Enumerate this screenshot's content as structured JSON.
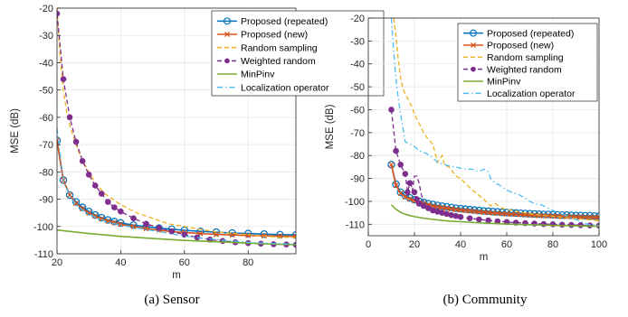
{
  "colors": {
    "proposed_repeated": "#0072BD",
    "proposed_new": "#D95319",
    "random_sampling": "#EDB120",
    "weighted_random": "#7E2F8E",
    "minpinv": "#77AC30",
    "localization_operator": "#4DBEEE"
  },
  "chart_data": [
    {
      "type": "line",
      "caption": "(a)  Sensor",
      "xlabel": "m",
      "ylabel": "MSE (dB)",
      "xlim": [
        20,
        95
      ],
      "ylim": [
        -110,
        -20
      ],
      "xticks": [
        20,
        40,
        60,
        80
      ],
      "yticks": [
        -110,
        -100,
        -90,
        -80,
        -70,
        -60,
        -50,
        -40,
        -30,
        -20
      ],
      "grid": true,
      "legend_position": "top-right",
      "series": [
        {
          "name": "Proposed (repeated)",
          "color_key": "proposed_repeated",
          "style": "solid",
          "marker": "circle",
          "x": [
            20,
            22,
            24,
            26,
            28,
            30,
            32,
            34,
            36,
            38,
            40,
            44,
            48,
            52,
            56,
            60,
            65,
            70,
            75,
            80,
            85,
            90,
            95
          ],
          "y": [
            -68.5,
            -83,
            -88.5,
            -91,
            -93,
            -94.5,
            -95.8,
            -96.8,
            -97.6,
            -98.2,
            -98.7,
            -99.5,
            -100.1,
            -100.6,
            -101,
            -101.4,
            -101.8,
            -102.1,
            -102.4,
            -102.6,
            -102.8,
            -103,
            -103.1
          ]
        },
        {
          "name": "Proposed (new)",
          "color_key": "proposed_new",
          "style": "solid",
          "marker": "x",
          "x": [
            20,
            22,
            24,
            26,
            28,
            30,
            32,
            34,
            36,
            38,
            40,
            44,
            48,
            52,
            56,
            60,
            65,
            70,
            75,
            80,
            85,
            90,
            95
          ],
          "y": [
            -68.5,
            -83,
            -88.5,
            -91.5,
            -93.5,
            -95,
            -96.2,
            -97.2,
            -98,
            -98.6,
            -99.2,
            -100,
            -100.8,
            -101.4,
            -101.9,
            -102.2,
            -102.6,
            -102.9,
            -103.1,
            -103.3,
            -103.4,
            -103.5,
            -103.6
          ]
        },
        {
          "name": "Random sampling",
          "color_key": "random_sampling",
          "style": "dashed",
          "marker": "none",
          "x": [
            20,
            21,
            22,
            23,
            24,
            26,
            28,
            30,
            32,
            35,
            40,
            45,
            50,
            55,
            60,
            65,
            70,
            75,
            80,
            85,
            90,
            95
          ],
          "y": [
            -20,
            -38,
            -50,
            -58,
            -63,
            -70,
            -76,
            -80,
            -84,
            -88,
            -92,
            -95,
            -97,
            -99,
            -100,
            -101,
            -102,
            -102.5,
            -103,
            -103.5,
            -104,
            -104
          ]
        },
        {
          "name": "Weighted random",
          "color_key": "weighted_random",
          "style": "dashed",
          "marker": "dot",
          "x": [
            20,
            22,
            24,
            26,
            28,
            30,
            32,
            34,
            36,
            38,
            40,
            44,
            48,
            52,
            56,
            60,
            64,
            68,
            72,
            76,
            80,
            84,
            88,
            92,
            95
          ],
          "y": [
            -22,
            -46,
            -60,
            -69,
            -76,
            -81,
            -85,
            -88,
            -91,
            -93,
            -94.5,
            -97,
            -99,
            -100.5,
            -101.8,
            -103,
            -104,
            -104.8,
            -105.3,
            -105.8,
            -106.1,
            -106.3,
            -106.5,
            -106.6,
            -106.7
          ]
        },
        {
          "name": "MinPinv",
          "color_key": "minpinv",
          "style": "solid",
          "marker": "none",
          "x": [
            20,
            30,
            40,
            50,
            60,
            70,
            80,
            90,
            95
          ],
          "y": [
            -101.3,
            -102.6,
            -103.6,
            -104.4,
            -105.1,
            -105.6,
            -106.1,
            -106.5,
            -106.7
          ]
        },
        {
          "name": "Localization operator",
          "color_key": "localization_operator",
          "style": "dashdot",
          "marker": "none",
          "x": [
            20,
            22,
            24,
            26,
            28,
            30,
            35,
            40,
            45,
            50,
            55,
            60,
            65,
            70,
            75,
            80,
            85,
            90,
            95
          ],
          "y": [
            -64,
            -83,
            -89,
            -92,
            -94,
            -95.5,
            -98,
            -99.5,
            -100.5,
            -101.5,
            -102.5,
            -103.5,
            -104.2,
            -104.8,
            -105.3,
            -105.8,
            -106.1,
            -106.3,
            -106.5
          ]
        }
      ]
    },
    {
      "type": "line",
      "caption": "(b)  Community",
      "xlabel": "m",
      "ylabel": "MSE (dB)",
      "xlim": [
        0,
        100
      ],
      "ylim": [
        -115,
        -20
      ],
      "xticks": [
        0,
        20,
        40,
        60,
        80,
        100
      ],
      "yticks": [
        -110,
        -100,
        -90,
        -80,
        -70,
        -60,
        -50,
        -40,
        -30,
        -20
      ],
      "grid": true,
      "legend_position": "top-right",
      "series": [
        {
          "name": "Proposed (repeated)",
          "color_key": "proposed_repeated",
          "style": "solid",
          "marker": "circle",
          "x": [
            10,
            12,
            14,
            16,
            18,
            20,
            22,
            24,
            26,
            28,
            30,
            32,
            34,
            36,
            38,
            40,
            42,
            44,
            46,
            48,
            50,
            52,
            54,
            56,
            58,
            60,
            62,
            64,
            66,
            68,
            70,
            72,
            74,
            76,
            78,
            80,
            82,
            84,
            86,
            88,
            90,
            92,
            94,
            96,
            98,
            100
          ],
          "y": [
            -84,
            -92.5,
            -96,
            -97.5,
            -98.5,
            -99.3,
            -100,
            -100.5,
            -101,
            -101.4,
            -101.8,
            -102.1,
            -102.4,
            -102.7,
            -103,
            -103.2,
            -103.4,
            -103.6,
            -103.8,
            -104,
            -104.2,
            -104.3,
            -104.5,
            -104.6,
            -104.8,
            -104.9,
            -105,
            -105.1,
            -105.2,
            -105.3,
            -105.4,
            -105.5,
            -105.6,
            -105.7,
            -105.7,
            -105.8,
            -105.9,
            -106,
            -106,
            -106.1,
            -106.2,
            -106.2,
            -106.3,
            -106.3,
            -106.4,
            -106.5
          ]
        },
        {
          "name": "Proposed (new)",
          "color_key": "proposed_new",
          "style": "solid",
          "marker": "x",
          "x": [
            10,
            12,
            14,
            16,
            18,
            20,
            22,
            24,
            26,
            28,
            30,
            32,
            34,
            36,
            38,
            40,
            42,
            44,
            46,
            48,
            50,
            52,
            54,
            56,
            58,
            60,
            62,
            64,
            66,
            68,
            70,
            72,
            74,
            76,
            78,
            80,
            82,
            84,
            86,
            88,
            90,
            92,
            94,
            96,
            98,
            100
          ],
          "y": [
            -84,
            -93,
            -96.5,
            -98,
            -99,
            -99.8,
            -100.5,
            -101,
            -101.5,
            -102,
            -102.4,
            -102.7,
            -103,
            -103.3,
            -103.6,
            -103.8,
            -104,
            -104.2,
            -104.4,
            -104.6,
            -104.8,
            -104.9,
            -105.1,
            -105.2,
            -105.4,
            -105.5,
            -105.6,
            -105.7,
            -105.8,
            -105.9,
            -106,
            -106.1,
            -106.2,
            -106.3,
            -106.3,
            -106.4,
            -106.5,
            -106.6,
            -106.6,
            -106.7,
            -106.8,
            -106.8,
            -106.9,
            -106.9,
            -107,
            -107
          ]
        },
        {
          "name": "Random sampling",
          "color_key": "random_sampling",
          "style": "dashed",
          "marker": "none",
          "x": [
            11,
            12,
            13,
            14,
            15,
            17,
            19,
            20,
            22,
            24,
            26,
            28,
            30,
            32,
            33,
            35,
            38,
            40,
            42,
            45,
            50,
            53,
            55,
            58,
            60,
            63,
            65,
            70,
            75,
            80,
            85,
            90,
            95,
            100
          ],
          "y": [
            -20,
            -28,
            -38,
            -46,
            -51,
            -55,
            -59,
            -62,
            -66,
            -70,
            -73,
            -75,
            -83,
            -80,
            -84,
            -85,
            -89,
            -90,
            -92,
            -95,
            -99,
            -102,
            -101,
            -103,
            -103.5,
            -104,
            -104.5,
            -105.5,
            -106,
            -106.5,
            -107,
            -107.5,
            -108,
            -108.5
          ]
        },
        {
          "name": "Weighted random",
          "color_key": "weighted_random",
          "style": "dashed",
          "marker": "dot",
          "x": [
            10,
            12,
            14,
            16,
            17,
            18,
            20,
            21,
            22,
            24,
            26,
            28,
            30,
            32,
            34,
            36,
            38,
            40,
            44,
            48,
            52,
            56,
            60,
            64,
            68,
            72,
            76,
            80,
            84,
            88,
            92,
            96,
            100
          ],
          "y": [
            -60,
            -78,
            -84,
            -88,
            -96,
            -92,
            -96,
            -99,
            -101,
            -102,
            -103,
            -104,
            -104.5,
            -105,
            -105.5,
            -106,
            -106.4,
            -106.8,
            -107.4,
            -107.9,
            -108.3,
            -108.7,
            -109,
            -109.3,
            -109.5,
            -109.7,
            -109.9,
            -110,
            -110.2,
            -110.3,
            -110.4,
            -110.5,
            -110.6
          ]
        },
        {
          "name": "MinPinv",
          "color_key": "minpinv",
          "style": "solid",
          "marker": "none",
          "x": [
            10,
            12,
            14,
            16,
            18,
            20,
            25,
            30,
            35,
            40,
            50,
            60,
            70,
            80,
            90,
            100
          ],
          "y": [
            -101.5,
            -103.5,
            -104.8,
            -105.6,
            -106.2,
            -106.7,
            -107.5,
            -108.1,
            -108.6,
            -108.9,
            -109.5,
            -109.9,
            -110.2,
            -110.5,
            -110.7,
            -110.9
          ]
        },
        {
          "name": "Localization operator",
          "color_key": "localization_operator",
          "style": "dashdot",
          "marker": "none",
          "x": [
            10,
            11,
            12,
            13,
            14,
            15,
            16,
            18,
            20,
            22,
            25,
            28,
            30,
            33,
            35,
            38,
            40,
            43,
            45,
            48,
            50,
            52,
            53,
            55,
            57,
            60,
            62,
            65,
            67,
            70,
            72,
            75,
            78,
            80,
            85,
            90,
            95,
            100
          ],
          "y": [
            -20,
            -35,
            -47,
            -55,
            -62,
            -68,
            -74,
            -75,
            -76,
            -78,
            -79,
            -81,
            -83,
            -84,
            -84.5,
            -85,
            -85.5,
            -86,
            -86,
            -87,
            -86,
            -87,
            -90,
            -92,
            -93,
            -95,
            -96,
            -97,
            -98,
            -100,
            -101,
            -101.5,
            -103,
            -104,
            -106,
            -108,
            -110,
            -110.5
          ]
        },
        {
          "name": "",
          "color_key": "weighted_random",
          "style": "dashed",
          "marker": "none",
          "x": [
            19,
            20,
            21,
            22,
            23,
            24
          ],
          "y": [
            -96,
            -89,
            -89,
            -92,
            -97,
            -100
          ]
        }
      ]
    }
  ]
}
